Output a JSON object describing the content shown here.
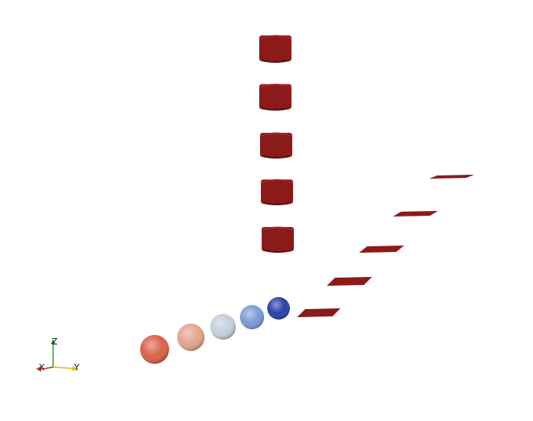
{
  "viewport": {
    "background": "#ffffff"
  },
  "colors": {
    "primitive_red": "#8b1a1a",
    "primitive_red_dark": "#5e0f0f",
    "primitive_red_light": "#a52828",
    "axis_x": "#c0392b",
    "axis_y": "#d4c400",
    "axis_z": "#2ca02c"
  },
  "spheres": {
    "count": 5,
    "colors": [
      "#d9614a",
      "#e2a58c",
      "#c3cfdc",
      "#7b9ad6",
      "#2a3fa8"
    ]
  },
  "cubes": {
    "count": 5
  },
  "planes": {
    "count": 5
  },
  "axes_triad": {
    "x_label": "X",
    "y_label": "Y",
    "z_label": "Z"
  }
}
